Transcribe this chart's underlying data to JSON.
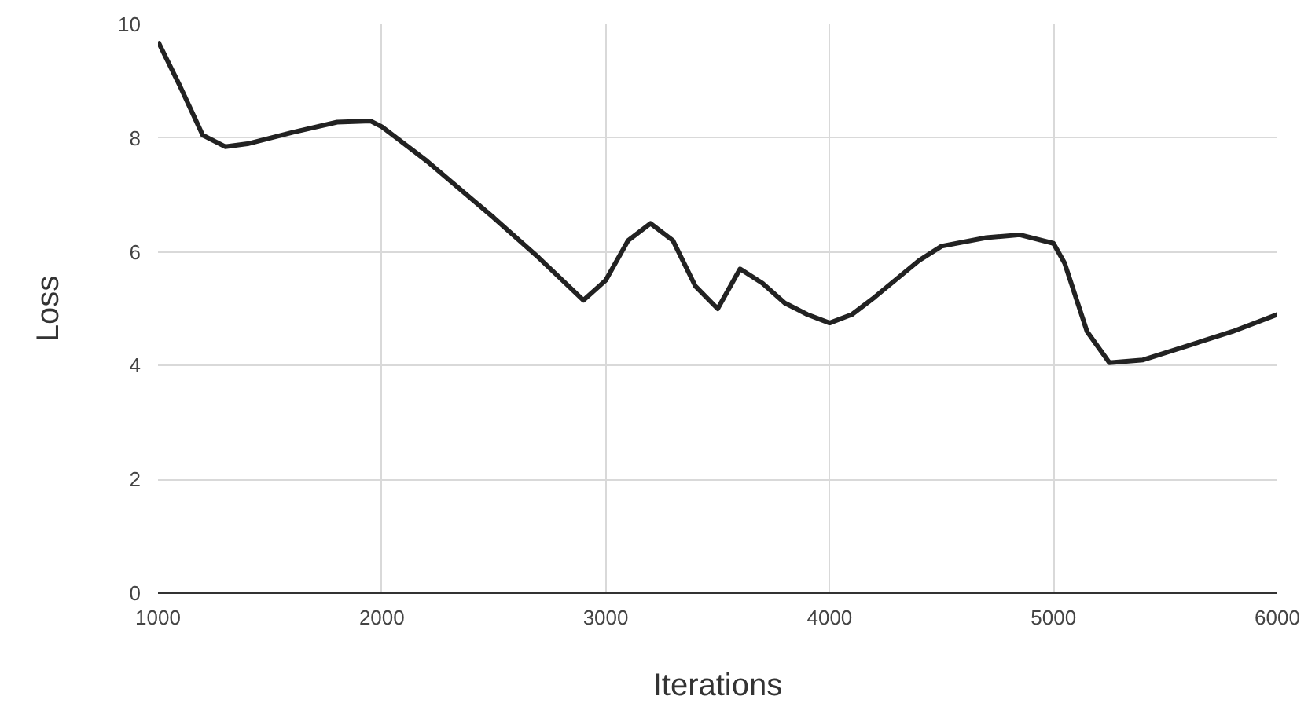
{
  "chart_data": {
    "type": "line",
    "xlabel": "Iterations",
    "ylabel": "Loss",
    "x": [
      1000,
      1100,
      1200,
      1300,
      1400,
      1600,
      1800,
      1950,
      2000,
      2200,
      2500,
      2700,
      2900,
      3000,
      3100,
      3200,
      3300,
      3400,
      3500,
      3600,
      3700,
      3800,
      3900,
      4000,
      4100,
      4200,
      4400,
      4500,
      4700,
      4850,
      5000,
      5050,
      5150,
      5250,
      5400,
      5600,
      5800,
      6000
    ],
    "series": [
      {
        "color": "#222222",
        "values": [
          9.7,
          8.9,
          8.05,
          7.85,
          7.9,
          8.1,
          8.28,
          8.3,
          8.2,
          7.6,
          6.6,
          5.9,
          5.15,
          5.5,
          6.2,
          6.5,
          6.2,
          5.4,
          5.0,
          5.7,
          5.45,
          5.1,
          4.9,
          4.75,
          4.9,
          5.2,
          5.85,
          6.1,
          6.25,
          6.3,
          6.15,
          5.8,
          4.6,
          4.05,
          4.1,
          4.35,
          4.6,
          4.9
        ]
      }
    ],
    "xlim": [
      1000,
      6000
    ],
    "ylim": [
      0,
      10
    ],
    "xticks": [
      1000,
      2000,
      3000,
      4000,
      5000,
      6000
    ],
    "yticks": [
      0,
      2,
      4,
      6,
      8,
      10
    ],
    "grid": true,
    "marker": "none",
    "line_style": "solid"
  }
}
